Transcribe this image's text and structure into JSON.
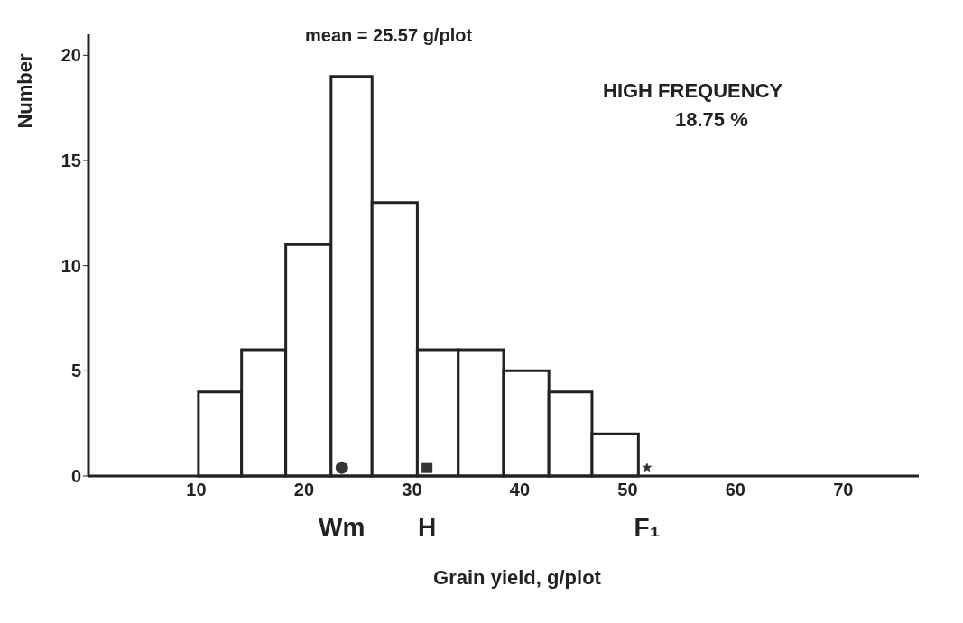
{
  "chart_data": {
    "type": "histogram",
    "xlabel": "Grain yield, g/plot",
    "ylabel": "Number",
    "bins": [
      10.2,
      14.2,
      18.3,
      22.5,
      26.3,
      30.5,
      34.3,
      38.5,
      42.7,
      46.7,
      51.0
    ],
    "values": [
      4,
      6,
      11,
      19,
      13,
      6,
      6,
      5,
      4,
      2
    ],
    "color": "#ffffff",
    "series": [
      {
        "type": "scatter",
        "name": "Wm",
        "marker": "circle",
        "color": "#333333",
        "x": [
          23.5
        ],
        "values": [
          0.4
        ]
      },
      {
        "type": "scatter",
        "name": "H",
        "marker": "square",
        "color": "#333333",
        "x": [
          31.4
        ],
        "values": [
          0.4
        ]
      },
      {
        "type": "scatter",
        "name": "F₁",
        "marker": "star",
        "color": "#333333",
        "x": [
          51.8
        ],
        "values": [
          0.4
        ]
      }
    ],
    "annotations": [
      "mean = 25.57 g/plot",
      "HIGH FREQUENCY",
      "18.75 %"
    ],
    "xlim": [
      0,
      77
    ],
    "xticks": [
      10,
      20,
      30,
      40,
      50,
      60,
      70
    ],
    "ylim": [
      0,
      21
    ],
    "yticks": [
      0,
      5,
      10,
      15,
      20
    ],
    "grid": false
  }
}
